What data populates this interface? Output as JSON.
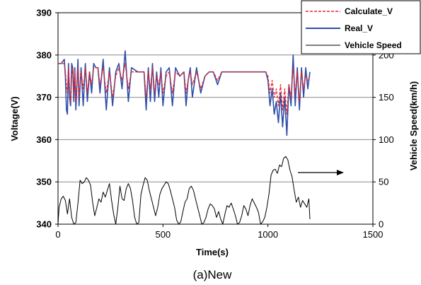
{
  "chart_data": {
    "type": "line",
    "caption": "(a)New",
    "xlabel": "Time(s)",
    "ylabel": "Voltage(V)",
    "y2label": "Vehicle Speed(km/h)",
    "xlim": [
      0,
      1500
    ],
    "ylim": [
      340,
      390
    ],
    "y2lim": [
      0,
      250
    ],
    "x_ticks": [
      "0",
      "500",
      "1000",
      "1500"
    ],
    "y_ticks": [
      "340",
      "350",
      "360",
      "370",
      "380",
      "390"
    ],
    "y2_ticks": [
      "0",
      "50",
      "100",
      "150",
      "200"
    ],
    "grid": "horizontal",
    "legend_position": "top-right",
    "series": [
      {
        "name": "Calculate_V",
        "axis": "left",
        "color": "#e8232a",
        "style": "dashed",
        "x": [
          0,
          15,
          30,
          35,
          40,
          45,
          50,
          55,
          60,
          65,
          70,
          75,
          80,
          85,
          90,
          95,
          100,
          110,
          120,
          130,
          140,
          150,
          160,
          170,
          180,
          190,
          200,
          215,
          230,
          245,
          260,
          275,
          290,
          305,
          320,
          335,
          350,
          380,
          410,
          420,
          430,
          440,
          450,
          460,
          470,
          480,
          490,
          500,
          515,
          530,
          545,
          560,
          580,
          600,
          610,
          620,
          630,
          640,
          660,
          680,
          700,
          720,
          740,
          760,
          780,
          800,
          850,
          900,
          950,
          970,
          990,
          1000,
          1010,
          1020,
          1030,
          1040,
          1050,
          1060,
          1070,
          1080,
          1090,
          1100,
          1110,
          1120,
          1130,
          1140,
          1150,
          1160,
          1170,
          1180,
          1190,
          1200
        ],
        "values": [
          378,
          378,
          378,
          376,
          373,
          371,
          377,
          372,
          369,
          375,
          377,
          371,
          376,
          369,
          373,
          377,
          370,
          376,
          372,
          377,
          371,
          376,
          373,
          377,
          377,
          377,
          373,
          377,
          371,
          376,
          370,
          375,
          377,
          374,
          378,
          372,
          376,
          376,
          376,
          370,
          376,
          372,
          377,
          371,
          375,
          373,
          376,
          371,
          375,
          376,
          371,
          376,
          375,
          376,
          371,
          374,
          376,
          373,
          376,
          372,
          375,
          376,
          376,
          374,
          376,
          376,
          376,
          376,
          376,
          376,
          376,
          375,
          371,
          374,
          370,
          372,
          368,
          373,
          367,
          372,
          366,
          373,
          370,
          377,
          371,
          376,
          369,
          376,
          372,
          375,
          374,
          375
        ]
      },
      {
        "name": "Real_V",
        "axis": "left",
        "color": "#2f4fa8",
        "style": "solid",
        "x": [
          0,
          15,
          30,
          35,
          40,
          45,
          50,
          55,
          60,
          65,
          70,
          75,
          80,
          85,
          90,
          95,
          100,
          110,
          120,
          130,
          140,
          150,
          160,
          170,
          180,
          190,
          200,
          215,
          230,
          245,
          260,
          275,
          290,
          305,
          320,
          335,
          350,
          380,
          410,
          420,
          430,
          440,
          450,
          460,
          470,
          480,
          490,
          500,
          515,
          530,
          545,
          560,
          580,
          600,
          610,
          620,
          630,
          640,
          660,
          680,
          700,
          720,
          740,
          760,
          780,
          800,
          850,
          900,
          950,
          970,
          990,
          1000,
          1010,
          1020,
          1030,
          1040,
          1050,
          1060,
          1070,
          1080,
          1090,
          1100,
          1110,
          1120,
          1130,
          1140,
          1150,
          1160,
          1170,
          1180,
          1190,
          1200
        ],
        "values": [
          378,
          378,
          379,
          375,
          367,
          366,
          378,
          370,
          368,
          378,
          377,
          369,
          377,
          367,
          373,
          379,
          368,
          377,
          368,
          378,
          369,
          376,
          371,
          378,
          377,
          377,
          371,
          379,
          367,
          377,
          368,
          376,
          378,
          372,
          381,
          369,
          377,
          376,
          376,
          367,
          377,
          369,
          378,
          369,
          376,
          370,
          377,
          368,
          376,
          377,
          368,
          377,
          375,
          376,
          368,
          374,
          377,
          370,
          377,
          371,
          375,
          376,
          376,
          373,
          376,
          376,
          376,
          376,
          376,
          376,
          376,
          374,
          368,
          372,
          366,
          369,
          364,
          371,
          363,
          370,
          361,
          373,
          368,
          380,
          368,
          377,
          367,
          377,
          370,
          377,
          372,
          376
        ]
      },
      {
        "name": "Vehicle Speed",
        "axis": "right",
        "color": "#000000",
        "style": "solid",
        "x": [
          0,
          5,
          15,
          25,
          35,
          45,
          55,
          65,
          75,
          85,
          95,
          105,
          115,
          125,
          135,
          145,
          155,
          165,
          175,
          185,
          195,
          205,
          215,
          225,
          235,
          245,
          255,
          265,
          275,
          285,
          295,
          305,
          315,
          325,
          335,
          345,
          355,
          365,
          375,
          385,
          395,
          405,
          415,
          425,
          435,
          445,
          455,
          465,
          475,
          485,
          495,
          505,
          515,
          525,
          535,
          545,
          555,
          565,
          575,
          585,
          595,
          605,
          615,
          625,
          635,
          645,
          655,
          665,
          675,
          685,
          695,
          705,
          715,
          725,
          735,
          745,
          755,
          765,
          775,
          785,
          795,
          805,
          815,
          825,
          835,
          845,
          855,
          865,
          875,
          885,
          895,
          905,
          915,
          925,
          935,
          945,
          955,
          965,
          975,
          985,
          995,
          1005,
          1015,
          1025,
          1035,
          1045,
          1055,
          1065,
          1075,
          1085,
          1095,
          1105,
          1115,
          1125,
          1135,
          1145,
          1155,
          1165,
          1175,
          1185,
          1195,
          1200
        ],
        "values": [
          0,
          20,
          30,
          33,
          28,
          12,
          30,
          8,
          0,
          2,
          25,
          52,
          48,
          50,
          55,
          52,
          46,
          26,
          10,
          20,
          30,
          26,
          38,
          32,
          40,
          48,
          28,
          12,
          0,
          20,
          45,
          30,
          28,
          42,
          48,
          42,
          28,
          8,
          0,
          2,
          35,
          46,
          55,
          52,
          40,
          30,
          20,
          10,
          20,
          35,
          42,
          46,
          50,
          48,
          40,
          30,
          20,
          5,
          0,
          3,
          15,
          26,
          30,
          42,
          45,
          40,
          30,
          20,
          10,
          0,
          2,
          8,
          18,
          24,
          22,
          18,
          8,
          15,
          6,
          0,
          12,
          22,
          20,
          25,
          18,
          10,
          0,
          2,
          10,
          22,
          18,
          10,
          22,
          30,
          25,
          20,
          14,
          0,
          3,
          8,
          20,
          36,
          58,
          64,
          65,
          60,
          70,
          68,
          78,
          80,
          76,
          64,
          56,
          40,
          26,
          32,
          20,
          28,
          24,
          20,
          30,
          6
        ]
      }
    ]
  }
}
